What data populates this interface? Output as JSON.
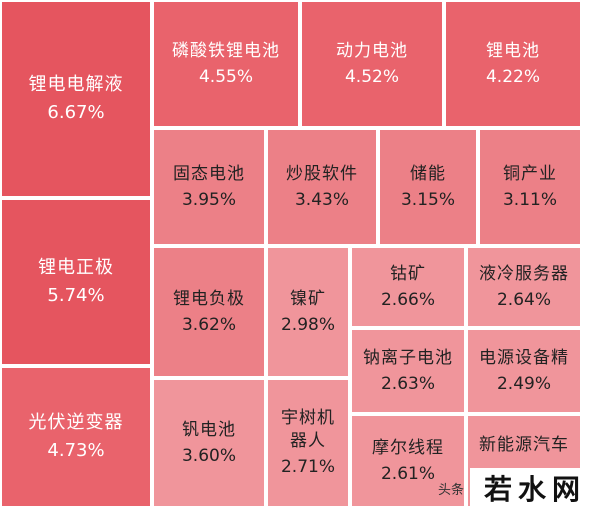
{
  "chart_data": {
    "type": "treemap",
    "items": [
      {
        "name": "锂电电解液",
        "value": "6.67%"
      },
      {
        "name": "锂电正极",
        "value": "5.74%"
      },
      {
        "name": "光伏逆变器",
        "value": "4.73%"
      },
      {
        "name": "磷酸铁锂电池",
        "value": "4.55%"
      },
      {
        "name": "动力电池",
        "value": "4.52%"
      },
      {
        "name": "锂电池",
        "value": "4.22%"
      },
      {
        "name": "固态电池",
        "value": "3.95%"
      },
      {
        "name": "炒股软件",
        "value": "3.43%"
      },
      {
        "name": "储能",
        "value": "3.15%"
      },
      {
        "name": "铜产业",
        "value": "3.11%"
      },
      {
        "name": "锂电负极",
        "value": "3.62%"
      },
      {
        "name": "镍矿",
        "value": "2.98%"
      },
      {
        "name": "钴矿",
        "value": "2.66%"
      },
      {
        "name": "液冷服务器",
        "value": "2.64%"
      },
      {
        "name": "钠离子电池",
        "value": "2.63%"
      },
      {
        "name": "电源设备精",
        "value": "2.49%"
      },
      {
        "name": "钒电池",
        "value": "3.60%"
      },
      {
        "name": "宇树机器人",
        "value": "2.71%"
      },
      {
        "name": "摩尔线程",
        "value": "2.61%"
      },
      {
        "name": "新能源汽车",
        "value": ""
      }
    ]
  },
  "watermark": {
    "source": "头条",
    "brand": "若水网"
  },
  "colors": {
    "dark_red": "#e5555f",
    "red": "#e9636c",
    "mid_pink": "#ec8087",
    "light_pink": "#f0959b"
  }
}
